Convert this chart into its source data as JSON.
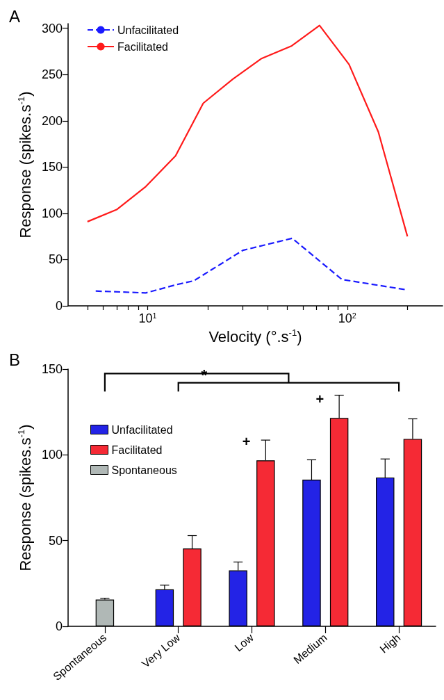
{
  "chart_data": [
    {
      "type": "line",
      "title": "A",
      "xlabel": "Velocity (°.s$^{-1}$)",
      "ylabel": "Response (spikes.s$^{-1}$)",
      "log": "x",
      "xlim": [
        4,
        300
      ],
      "xticks": [
        {
          "value": 5,
          "label": null
        },
        {
          "value": 6,
          "label": null
        },
        {
          "value": 7,
          "label": null
        },
        {
          "value": 8,
          "label": null
        },
        {
          "value": 9,
          "label": null
        },
        {
          "value": 10,
          "label": "10$^{1}$"
        },
        {
          "value": 20,
          "label": null
        },
        {
          "value": 30,
          "label": null
        },
        {
          "value": 40,
          "label": null
        },
        {
          "value": 50,
          "label": null
        },
        {
          "value": 60,
          "label": null
        },
        {
          "value": 70,
          "label": null
        },
        {
          "value": 80,
          "label": null
        },
        {
          "value": 90,
          "label": null
        },
        {
          "value": 100,
          "label": "10$^{2}$"
        },
        {
          "value": 200,
          "label": null
        }
      ],
      "ylim": [
        0,
        305
      ],
      "yticks": [
        0,
        50,
        100,
        150,
        200,
        250,
        300
      ],
      "grid": false,
      "legend": "top left",
      "marker": "none",
      "series": [
        {
          "name": "Unfacilitated",
          "color": "#1a1aff",
          "line_style": "dashed",
          "x": [
            5.5,
            9.8,
            14,
            17,
            30,
            53,
            94,
            196
          ],
          "values": [
            16,
            14,
            23,
            27,
            60,
            73,
            28.5,
            17.5
          ]
        },
        {
          "name": "Facilitated",
          "color": "#ff1a1a",
          "line_style": "solid",
          "x": [
            5,
            7,
            9.8,
            13.8,
            19,
            26.7,
            37,
            52.7,
            72.6,
            102,
            143,
            200
          ],
          "values": [
            91,
            104,
            129,
            162,
            219,
            245,
            267,
            281,
            303,
            261,
            188,
            75
          ]
        }
      ]
    },
    {
      "type": "bar",
      "title": "B",
      "ylabel": "Response (spikes.s$^{-1}$)",
      "categories": [
        "Spontaneous",
        "Very Low",
        "Low",
        "Medium",
        "High"
      ],
      "ylim": [
        0,
        150
      ],
      "yticks": [
        0,
        50,
        100,
        150
      ],
      "grid": false,
      "legend": "top left",
      "annotations": [
        "*",
        "+",
        "+"
      ],
      "series": [
        {
          "name": "Unfacilitated",
          "color": "#2323e6",
          "values": [
            null,
            21.6,
            32.6,
            85.5,
            86.8
          ],
          "errors": [
            null,
            [
              21.6,
              24
            ],
            [
              32.6,
              37.5
            ],
            [
              85.5,
              97.1
            ],
            [
              86.8,
              97.6
            ]
          ]
        },
        {
          "name": "Facilitated",
          "color": "#f52a35",
          "values": [
            null,
            45.4,
            96.8,
            121.5,
            109.3
          ],
          "errors": [
            null,
            [
              45.4,
              52.9
            ],
            [
              96.8,
              108.6
            ],
            [
              121.5,
              134.8
            ],
            [
              109.3,
              121
            ]
          ]
        },
        {
          "name": "Spontaneous",
          "color": "#b0b8b6",
          "values": [
            15.6,
            null,
            null,
            null,
            null
          ],
          "errors": [
            [
              15.6,
              16.4
            ],
            null,
            null,
            null,
            null
          ]
        }
      ]
    }
  ]
}
